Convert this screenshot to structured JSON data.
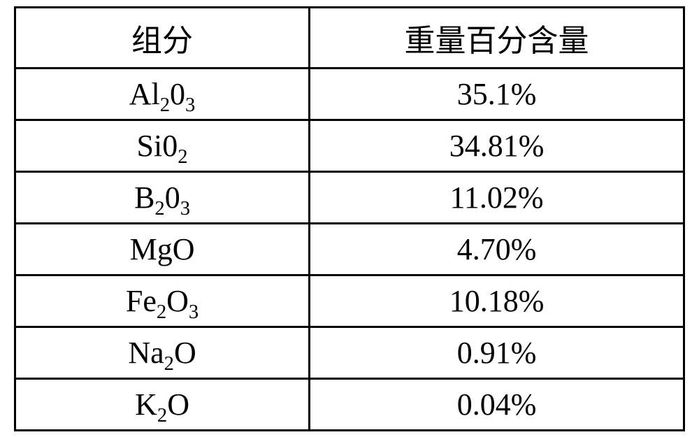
{
  "table": {
    "headers": [
      "组分",
      "重量百分含量"
    ],
    "rows": [
      {
        "component_html": "Al<sub>2</sub>0<sub>3</sub>",
        "value": "35.1%"
      },
      {
        "component_html": "Si0<sub>2</sub>",
        "value": "34.81%"
      },
      {
        "component_html": "B<sub>2</sub>0<sub>3</sub>",
        "value": "11.02%"
      },
      {
        "component_html": "MgO",
        "value": "4.70%"
      },
      {
        "component_html": "Fe<sub>2</sub>O<sub>3</sub>",
        "value": "10.18%"
      },
      {
        "component_html": "Na<sub>2</sub>O",
        "value": "0.91%"
      },
      {
        "component_html": "K<sub>2</sub>O",
        "value": "0.04%"
      }
    ],
    "border_color": "#000000",
    "background_color": "#ffffff",
    "font_size_pt": 32,
    "cell_align": "center"
  }
}
